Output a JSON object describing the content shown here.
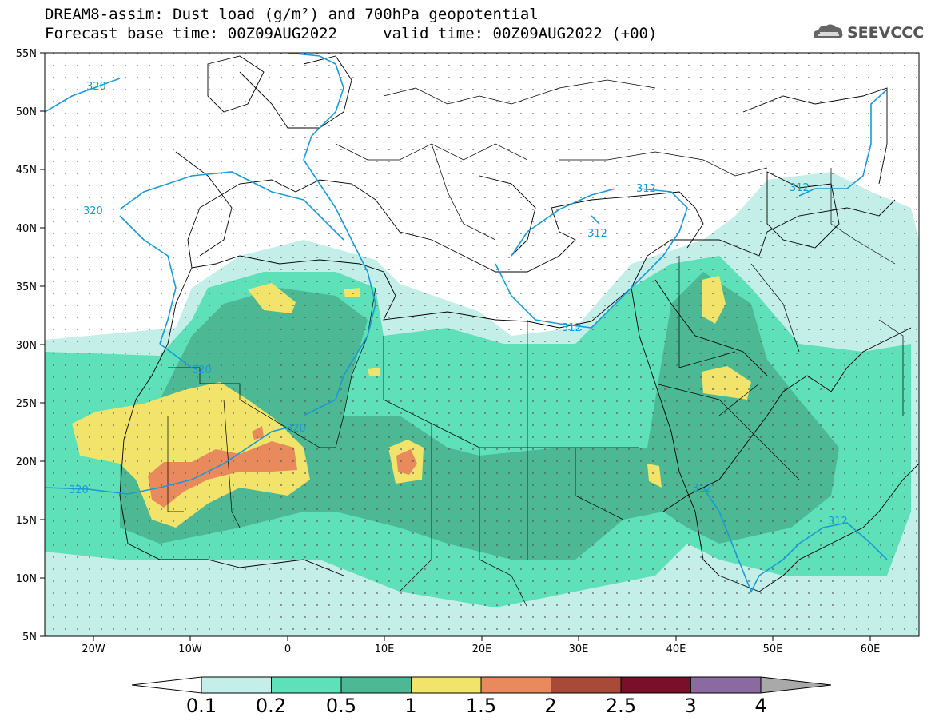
{
  "header": {
    "line1": "DREAM8-assim: Dust load (g/m²) and 700hPa geopotential",
    "line2": "Forecast base time: 00Z09AUG2022     valid time: 00Z09AUG2022 (+00)"
  },
  "logo": {
    "text": "SEEVCCC",
    "icon": "cloud-icon"
  },
  "axes": {
    "lat_labels": [
      "55N",
      "50N",
      "45N",
      "40N",
      "35N",
      "30N",
      "25N",
      "20N",
      "15N",
      "10N",
      "5N"
    ],
    "lon_labels": [
      "20W",
      "10W",
      "0",
      "10E",
      "20E",
      "30E",
      "40E",
      "50E",
      "60E"
    ]
  },
  "contours": {
    "color": "#1a9ad6",
    "labels": [
      "320",
      "320",
      "320",
      "320",
      "320",
      "312",
      "312",
      "312",
      "312",
      "312",
      "312"
    ]
  },
  "colorbar": {
    "levels": [
      "0.1",
      "0.2",
      "0.5",
      "1",
      "1.5",
      "2",
      "2.5",
      "3",
      "4"
    ],
    "colors": [
      "#c4efe9",
      "#5ee0b8",
      "#4cb894",
      "#f2e36a",
      "#e88a5c",
      "#a84a38",
      "#7a0f2a",
      "#8a6aa0",
      "#a9a9a9"
    ]
  }
}
